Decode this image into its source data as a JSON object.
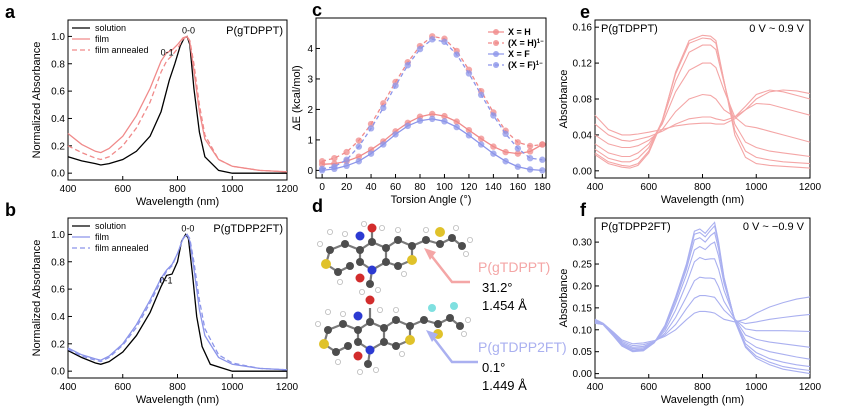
{
  "panel_d": {
    "label": "d",
    "pol1_name": "P(gTDPPT)",
    "pol1_angle": "31.2°",
    "pol1_length": "1.454 Å",
    "pol2_name": "P(gTDPP2FT)",
    "pol2_angle": "0.1°",
    "pol2_length": "1.449 Å",
    "pol1_color": "#f4a6a6",
    "pol2_color": "#aab0f0"
  },
  "chart_data": [
    {
      "id": "a",
      "label": "a",
      "type": "line",
      "title": "P(gTDPPT)",
      "xlabel": "Wavelength (nm)",
      "ylabel": "Normalized Absorbance",
      "xlim": [
        400,
        1200
      ],
      "ylim": [
        -0.05,
        1.12
      ],
      "xticks": [
        400,
        600,
        800,
        1000,
        1200
      ],
      "yticks": [
        0.0,
        0.2,
        0.4,
        0.6,
        0.8,
        1.0
      ],
      "ytick_labels": [
        "0.0",
        "0.2",
        "0.4",
        "0.6",
        "0.8",
        "1.0"
      ],
      "annotations": [
        {
          "text": "0-1",
          "x": 762,
          "y": 0.86
        },
        {
          "text": "0-0",
          "x": 840,
          "y": 1.02
        }
      ],
      "legend": "top-left",
      "series": [
        {
          "name": "solution",
          "color": "#000000",
          "dash": "",
          "x": [
            400,
            450,
            500,
            520,
            550,
            600,
            650,
            700,
            740,
            770,
            790,
            810,
            825,
            835,
            845,
            860,
            880,
            900,
            950,
            1000,
            1100,
            1200
          ],
          "y": [
            0.12,
            0.09,
            0.07,
            0.06,
            0.07,
            0.1,
            0.16,
            0.27,
            0.45,
            0.68,
            0.8,
            0.93,
            0.99,
            1.0,
            0.94,
            0.62,
            0.3,
            0.12,
            0.02,
            0.0,
            0.0,
            0.0
          ]
        },
        {
          "name": "film",
          "color": "#f08a8a",
          "dash": "",
          "x": [
            400,
            450,
            500,
            520,
            550,
            600,
            650,
            700,
            740,
            760,
            780,
            800,
            820,
            835,
            845,
            860,
            880,
            900,
            950,
            1000,
            1100,
            1200
          ],
          "y": [
            0.29,
            0.21,
            0.16,
            0.15,
            0.18,
            0.27,
            0.42,
            0.62,
            0.82,
            0.88,
            0.9,
            0.94,
            0.99,
            1.0,
            0.96,
            0.75,
            0.45,
            0.25,
            0.1,
            0.05,
            0.02,
            0.01
          ]
        },
        {
          "name": "film annealed",
          "color": "#f08a8a",
          "dash": "5,3",
          "x": [
            400,
            450,
            500,
            520,
            550,
            600,
            650,
            700,
            740,
            760,
            780,
            800,
            820,
            835,
            845,
            860,
            880,
            900,
            950,
            1000,
            1100,
            1200
          ],
          "y": [
            0.2,
            0.15,
            0.11,
            0.1,
            0.12,
            0.2,
            0.33,
            0.52,
            0.74,
            0.82,
            0.86,
            0.91,
            0.98,
            1.0,
            0.97,
            0.8,
            0.5,
            0.28,
            0.1,
            0.05,
            0.02,
            0.01
          ]
        }
      ]
    },
    {
      "id": "b",
      "label": "b",
      "type": "line",
      "title": "P(gTDPP2FT)",
      "xlabel": "Wavelength (nm)",
      "ylabel": "Normalized Absorbance",
      "xlim": [
        400,
        1200
      ],
      "ylim": [
        -0.05,
        1.12
      ],
      "xticks": [
        400,
        600,
        800,
        1000,
        1200
      ],
      "yticks": [
        0.0,
        0.2,
        0.4,
        0.6,
        0.8,
        1.0
      ],
      "ytick_labels": [
        "0.0",
        "0.2",
        "0.4",
        "0.6",
        "0.8",
        "1.0"
      ],
      "annotations": [
        {
          "text": "0-1",
          "x": 758,
          "y": 0.64
        },
        {
          "text": "0-0",
          "x": 838,
          "y": 1.02
        }
      ],
      "legend": "top-left",
      "series": [
        {
          "name": "solution",
          "color": "#000000",
          "dash": "",
          "x": [
            400,
            450,
            500,
            520,
            550,
            600,
            650,
            700,
            740,
            760,
            780,
            800,
            815,
            830,
            840,
            855,
            870,
            890,
            920,
            1000,
            1100,
            1200
          ],
          "y": [
            0.15,
            0.1,
            0.06,
            0.05,
            0.07,
            0.14,
            0.26,
            0.43,
            0.62,
            0.7,
            0.71,
            0.8,
            0.95,
            1.0,
            0.97,
            0.7,
            0.4,
            0.18,
            0.05,
            0.0,
            0.0,
            0.0
          ]
        },
        {
          "name": "film",
          "color": "#8c95ea",
          "dash": "",
          "x": [
            400,
            450,
            500,
            520,
            550,
            600,
            650,
            700,
            740,
            760,
            780,
            800,
            820,
            835,
            845,
            860,
            880,
            900,
            950,
            1000,
            1100,
            1200
          ],
          "y": [
            0.17,
            0.12,
            0.09,
            0.08,
            0.11,
            0.2,
            0.34,
            0.52,
            0.68,
            0.74,
            0.78,
            0.86,
            0.97,
            1.0,
            0.95,
            0.75,
            0.45,
            0.26,
            0.1,
            0.05,
            0.02,
            0.01
          ]
        },
        {
          "name": "film annealed",
          "color": "#8c95ea",
          "dash": "5,3",
          "x": [
            400,
            450,
            500,
            520,
            550,
            600,
            650,
            700,
            740,
            760,
            780,
            800,
            820,
            835,
            845,
            860,
            880,
            900,
            950,
            1000,
            1100,
            1200
          ],
          "y": [
            0.16,
            0.11,
            0.08,
            0.07,
            0.1,
            0.19,
            0.32,
            0.5,
            0.66,
            0.73,
            0.77,
            0.86,
            0.97,
            1.0,
            0.97,
            0.8,
            0.52,
            0.31,
            0.12,
            0.06,
            0.02,
            0.01
          ]
        }
      ]
    },
    {
      "id": "c",
      "label": "c",
      "type": "line",
      "xlabel": "Torsion Angle (°)",
      "ylabel": "ΔE (kcal/mol)",
      "xlim": [
        -5,
        183
      ],
      "ylim": [
        -0.25,
        5.0
      ],
      "xticks": [
        0,
        20,
        40,
        60,
        80,
        100,
        120,
        140,
        160,
        180
      ],
      "yticks": [
        0,
        1,
        2,
        3,
        4
      ],
      "ytick_labels": [
        "0",
        "1",
        "2",
        "3",
        "4"
      ],
      "legend": "top-right",
      "x": [
        0,
        10,
        20,
        30,
        40,
        50,
        60,
        70,
        80,
        90,
        100,
        110,
        120,
        130,
        140,
        150,
        160,
        170,
        180
      ],
      "series": [
        {
          "name": "X = H",
          "color": "#f08a8a",
          "dash": "",
          "y": [
            0.2,
            0.22,
            0.3,
            0.45,
            0.68,
            0.95,
            1.28,
            1.56,
            1.76,
            1.85,
            1.78,
            1.6,
            1.32,
            1.04,
            0.78,
            0.6,
            0.55,
            0.62,
            0.85
          ]
        },
        {
          "name": "(X = H)",
          "sup": "1−",
          "color": "#f08a8a",
          "dash": "4,3",
          "y": [
            0.3,
            0.4,
            0.6,
            0.98,
            1.52,
            2.2,
            2.9,
            3.55,
            4.08,
            4.4,
            4.32,
            3.92,
            3.3,
            2.6,
            1.9,
            1.3,
            0.92,
            0.8,
            0.85
          ]
        },
        {
          "name": "X = F",
          "color": "#8c95ea",
          "dash": "",
          "y": [
            0.0,
            0.05,
            0.15,
            0.3,
            0.55,
            0.85,
            1.18,
            1.46,
            1.63,
            1.69,
            1.61,
            1.42,
            1.15,
            0.85,
            0.55,
            0.3,
            0.12,
            0.03,
            0.0
          ]
        },
        {
          "name": "(X = F)",
          "sup": "1−",
          "color": "#8c95ea",
          "dash": "4,3",
          "y": [
            0.05,
            0.12,
            0.35,
            0.78,
            1.38,
            2.05,
            2.78,
            3.45,
            3.98,
            4.3,
            4.22,
            3.8,
            3.18,
            2.48,
            1.8,
            1.2,
            0.72,
            0.4,
            0.35
          ]
        }
      ]
    },
    {
      "id": "e",
      "label": "e",
      "type": "line",
      "title": "P(gTDPPT)",
      "annotation": "0 V ~ 0.9 V",
      "xlabel": "Wavelength (nm)",
      "ylabel": "Absorbance",
      "xlim": [
        400,
        1200
      ],
      "ylim": [
        -0.008,
        0.168
      ],
      "xticks": [
        400,
        600,
        800,
        1000,
        1200
      ],
      "yticks": [
        0.0,
        0.04,
        0.08,
        0.12,
        0.16
      ],
      "ytick_labels": [
        "0.00",
        "0.04",
        "0.08",
        "0.12",
        "0.16"
      ],
      "color": "#f4a6a6",
      "x": [
        400,
        450,
        500,
        530,
        560,
        600,
        650,
        700,
        750,
        800,
        830,
        850,
        880,
        920,
        960,
        1000,
        1050,
        1100,
        1150,
        1200
      ],
      "series": [
        {
          "y": [
            0.018,
            0.008,
            0.004,
            0.003,
            0.006,
            0.02,
            0.055,
            0.11,
            0.145,
            0.151,
            0.15,
            0.145,
            0.1,
            0.04,
            0.015,
            0.008,
            0.006,
            0.005,
            0.004,
            0.003
          ]
        },
        {
          "y": [
            0.02,
            0.01,
            0.006,
            0.005,
            0.008,
            0.022,
            0.056,
            0.108,
            0.142,
            0.148,
            0.147,
            0.142,
            0.1,
            0.045,
            0.022,
            0.015,
            0.012,
            0.01,
            0.009,
            0.008
          ]
        },
        {
          "y": [
            0.024,
            0.014,
            0.01,
            0.01,
            0.014,
            0.026,
            0.055,
            0.1,
            0.132,
            0.14,
            0.14,
            0.135,
            0.098,
            0.052,
            0.032,
            0.026,
            0.022,
            0.02,
            0.018,
            0.016
          ]
        },
        {
          "y": [
            0.03,
            0.02,
            0.016,
            0.016,
            0.02,
            0.03,
            0.052,
            0.088,
            0.112,
            0.12,
            0.12,
            0.115,
            0.09,
            0.06,
            0.05,
            0.048,
            0.044,
            0.04,
            0.036,
            0.032
          ]
        },
        {
          "y": [
            0.04,
            0.03,
            0.026,
            0.026,
            0.028,
            0.034,
            0.046,
            0.066,
            0.08,
            0.085,
            0.084,
            0.08,
            0.068,
            0.06,
            0.068,
            0.075,
            0.074,
            0.07,
            0.066,
            0.062
          ]
        },
        {
          "y": [
            0.052,
            0.04,
            0.034,
            0.033,
            0.035,
            0.038,
            0.044,
            0.052,
            0.058,
            0.06,
            0.06,
            0.058,
            0.056,
            0.06,
            0.072,
            0.085,
            0.09,
            0.088,
            0.084,
            0.08
          ]
        },
        {
          "y": [
            0.062,
            0.046,
            0.04,
            0.04,
            0.041,
            0.043,
            0.046,
            0.05,
            0.052,
            0.053,
            0.053,
            0.052,
            0.052,
            0.058,
            0.068,
            0.08,
            0.088,
            0.09,
            0.089,
            0.086
          ]
        }
      ]
    },
    {
      "id": "f",
      "label": "f",
      "type": "line",
      "title": "P(gTDPP2FT)",
      "annotation": "0 V ~ −0.9 V",
      "xlabel": "Wavelength (nm)",
      "ylabel": "Absorbance",
      "xlim": [
        400,
        1200
      ],
      "ylim": [
        -0.01,
        0.355
      ],
      "xticks": [
        400,
        600,
        800,
        1000,
        1200
      ],
      "yticks": [
        0.0,
        0.05,
        0.1,
        0.15,
        0.2,
        0.25,
        0.3
      ],
      "ytick_labels": [
        "0.00",
        "0.05",
        "0.10",
        "0.15",
        "0.20",
        "0.25",
        "0.30"
      ],
      "color": "#aab0f0",
      "x": [
        400,
        430,
        470,
        500,
        540,
        580,
        620,
        660,
        700,
        740,
        770,
        790,
        810,
        830,
        845,
        860,
        880,
        920,
        960,
        1000,
        1050,
        1100,
        1150,
        1200
      ],
      "series": [
        {
          "y": [
            0.115,
            0.112,
            0.085,
            0.063,
            0.05,
            0.052,
            0.07,
            0.11,
            0.175,
            0.25,
            0.325,
            0.33,
            0.32,
            0.335,
            0.345,
            0.3,
            0.22,
            0.12,
            0.06,
            0.035,
            0.02,
            0.01,
            0.005,
            0.0
          ]
        },
        {
          "y": [
            0.115,
            0.112,
            0.085,
            0.063,
            0.051,
            0.053,
            0.07,
            0.108,
            0.172,
            0.245,
            0.318,
            0.322,
            0.312,
            0.327,
            0.337,
            0.294,
            0.218,
            0.121,
            0.063,
            0.04,
            0.026,
            0.016,
            0.011,
            0.007
          ]
        },
        {
          "y": [
            0.116,
            0.112,
            0.086,
            0.064,
            0.052,
            0.054,
            0.07,
            0.106,
            0.168,
            0.238,
            0.305,
            0.31,
            0.3,
            0.315,
            0.322,
            0.284,
            0.214,
            0.122,
            0.068,
            0.048,
            0.034,
            0.026,
            0.02,
            0.016
          ]
        },
        {
          "y": [
            0.117,
            0.112,
            0.087,
            0.066,
            0.054,
            0.056,
            0.071,
            0.103,
            0.16,
            0.225,
            0.282,
            0.29,
            0.283,
            0.295,
            0.3,
            0.268,
            0.206,
            0.123,
            0.076,
            0.06,
            0.05,
            0.044,
            0.038,
            0.033
          ]
        },
        {
          "y": [
            0.118,
            0.112,
            0.088,
            0.068,
            0.057,
            0.059,
            0.072,
            0.098,
            0.145,
            0.205,
            0.255,
            0.265,
            0.26,
            0.262,
            0.262,
            0.238,
            0.19,
            0.125,
            0.088,
            0.078,
            0.072,
            0.068,
            0.064,
            0.06
          ]
        },
        {
          "y": [
            0.12,
            0.113,
            0.09,
            0.071,
            0.06,
            0.062,
            0.072,
            0.092,
            0.128,
            0.175,
            0.212,
            0.22,
            0.218,
            0.218,
            0.216,
            0.198,
            0.165,
            0.124,
            0.102,
            0.098,
            0.098,
            0.098,
            0.097,
            0.096
          ]
        },
        {
          "y": [
            0.122,
            0.114,
            0.092,
            0.074,
            0.064,
            0.066,
            0.073,
            0.088,
            0.112,
            0.148,
            0.172,
            0.178,
            0.178,
            0.176,
            0.174,
            0.162,
            0.145,
            0.122,
            0.114,
            0.118,
            0.124,
            0.128,
            0.132,
            0.135
          ]
        },
        {
          "y": [
            0.124,
            0.115,
            0.094,
            0.077,
            0.068,
            0.07,
            0.075,
            0.085,
            0.1,
            0.123,
            0.138,
            0.142,
            0.142,
            0.14,
            0.138,
            0.132,
            0.124,
            0.118,
            0.124,
            0.138,
            0.152,
            0.162,
            0.17,
            0.175
          ]
        }
      ]
    }
  ]
}
